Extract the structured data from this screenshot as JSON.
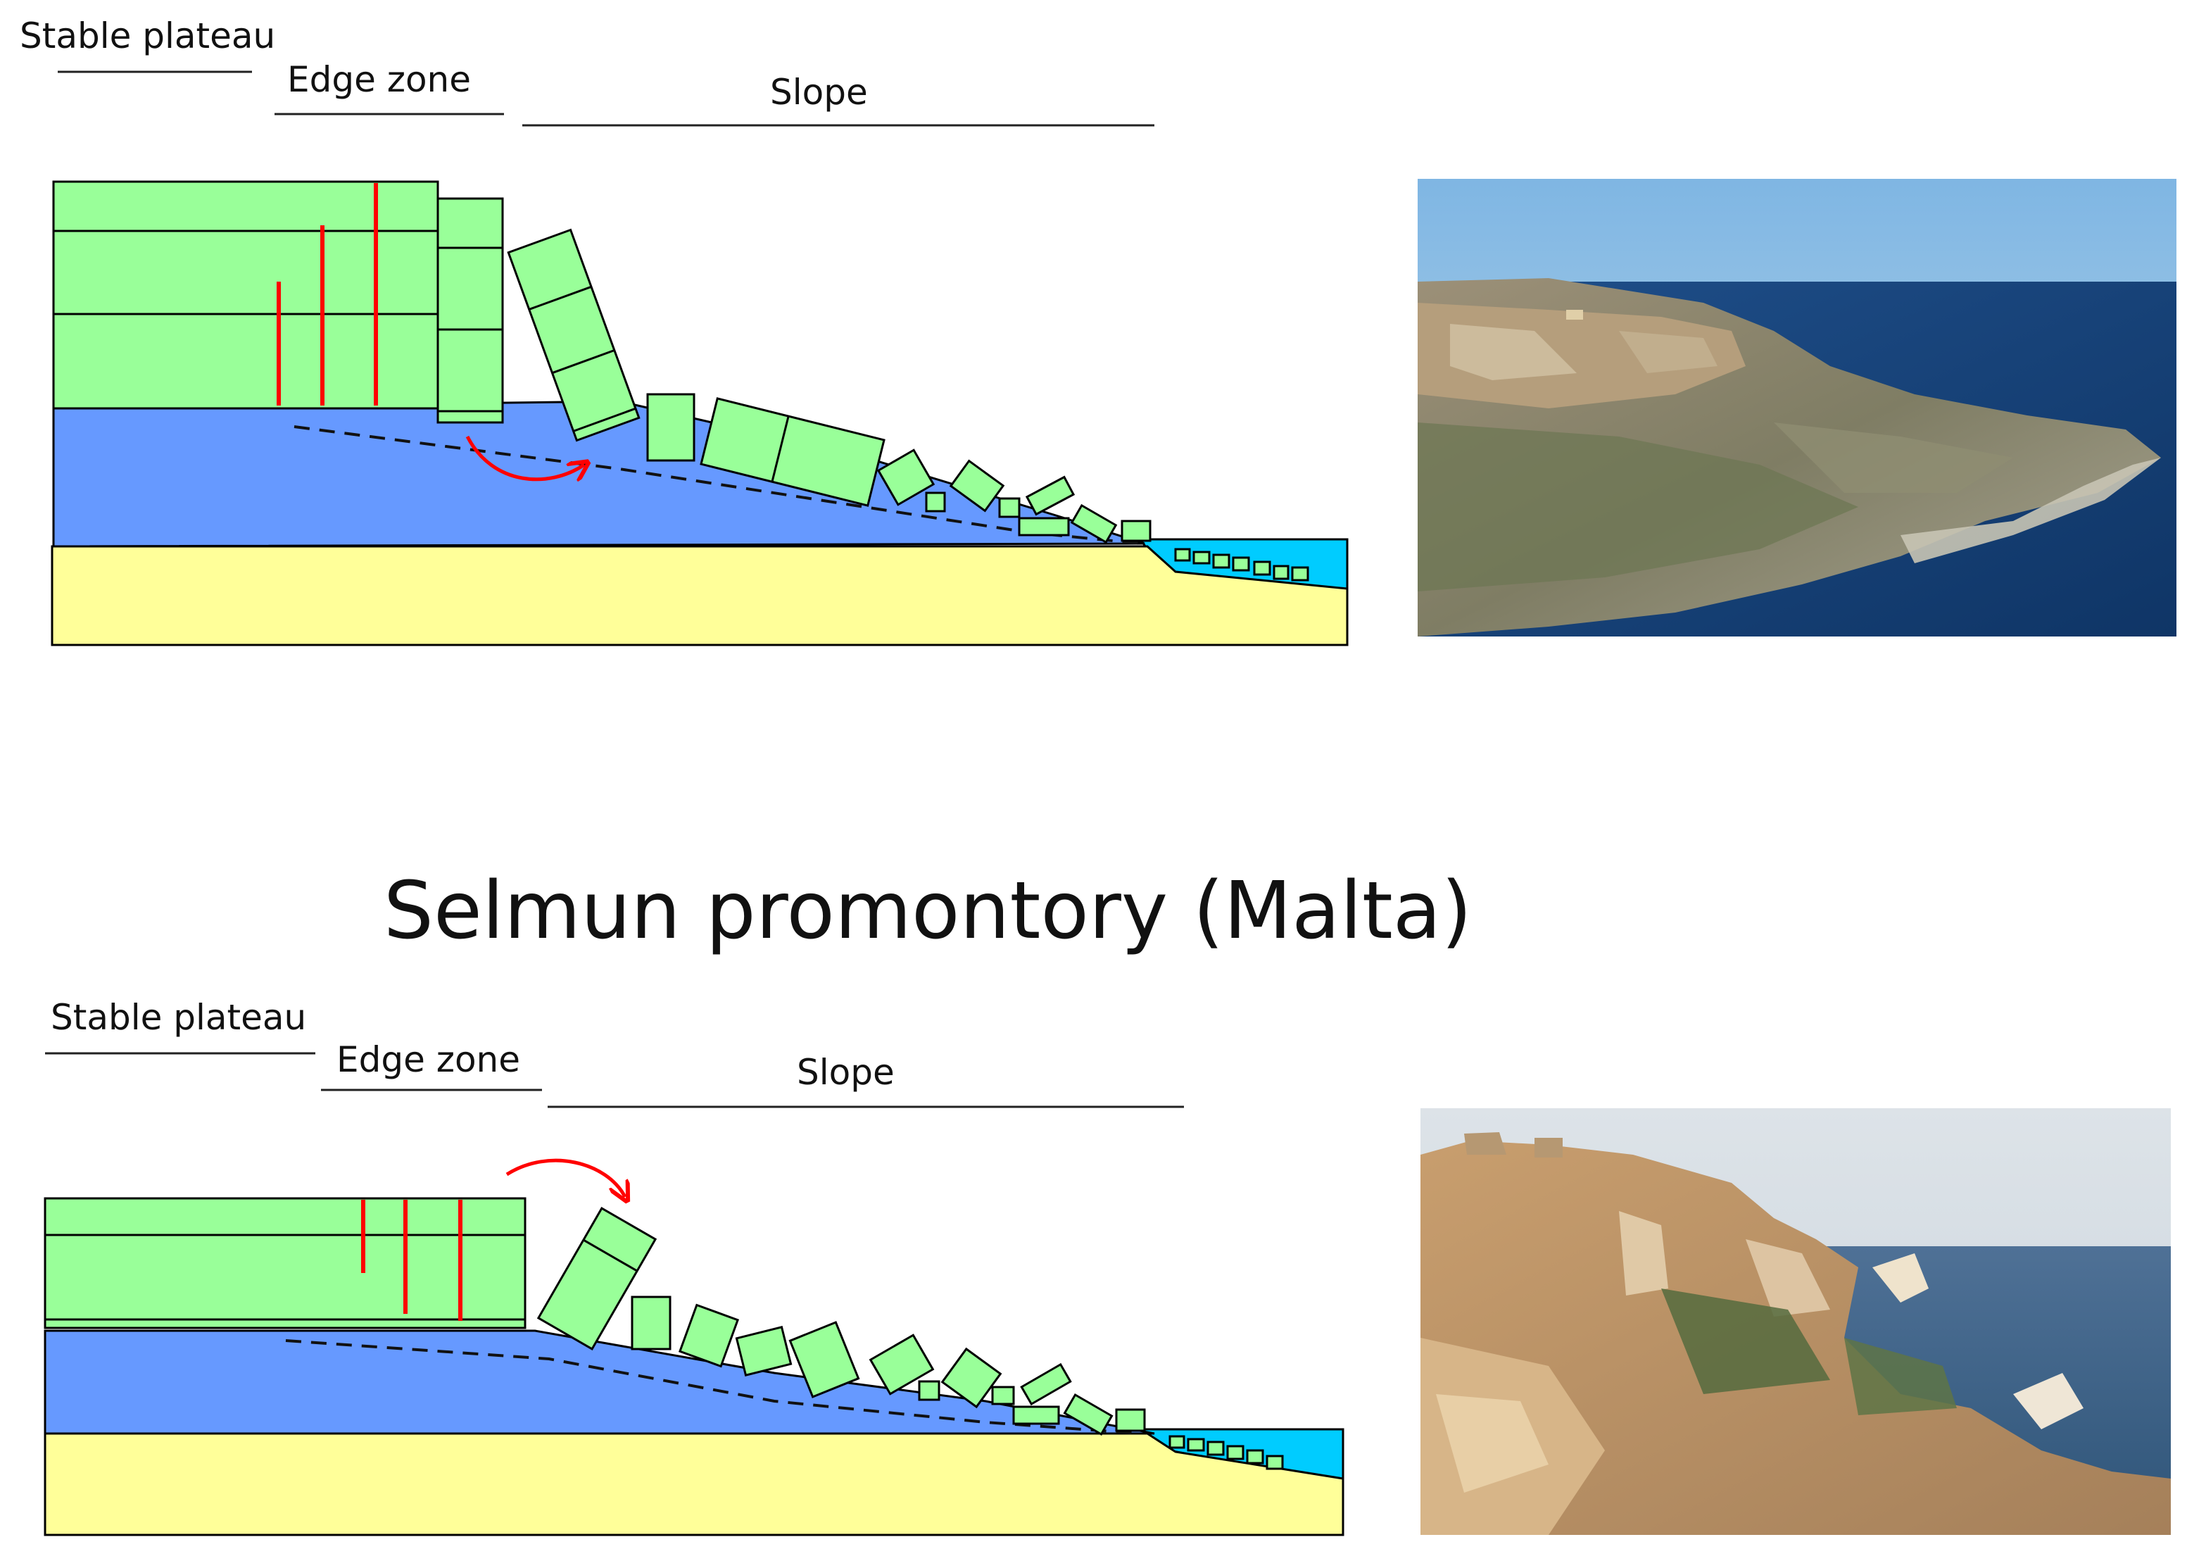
{
  "title": "Selmun promontory (Malta)",
  "panels": [
    {
      "id": "top",
      "zones": {
        "plateau": "Stable plateau",
        "edge": "Edge zone",
        "slope": "Slope"
      }
    },
    {
      "id": "bottom",
      "zones": {
        "plateau": "Stable plateau",
        "edge": "Edge zone",
        "slope": "Slope"
      }
    }
  ],
  "photos": [
    {
      "name": "coastal-promontory-aerial-photo"
    },
    {
      "name": "cliff-edge-rock-blocks-photo"
    }
  ],
  "colors": {
    "block_fill": "#99FF99",
    "clay_fill": "#6699FF",
    "bedrock_fill": "#FFFF99",
    "sea_fill": "#00CCFF",
    "fracture": "#FF0000",
    "arrow": "#FF0000",
    "outline": "#000000"
  }
}
